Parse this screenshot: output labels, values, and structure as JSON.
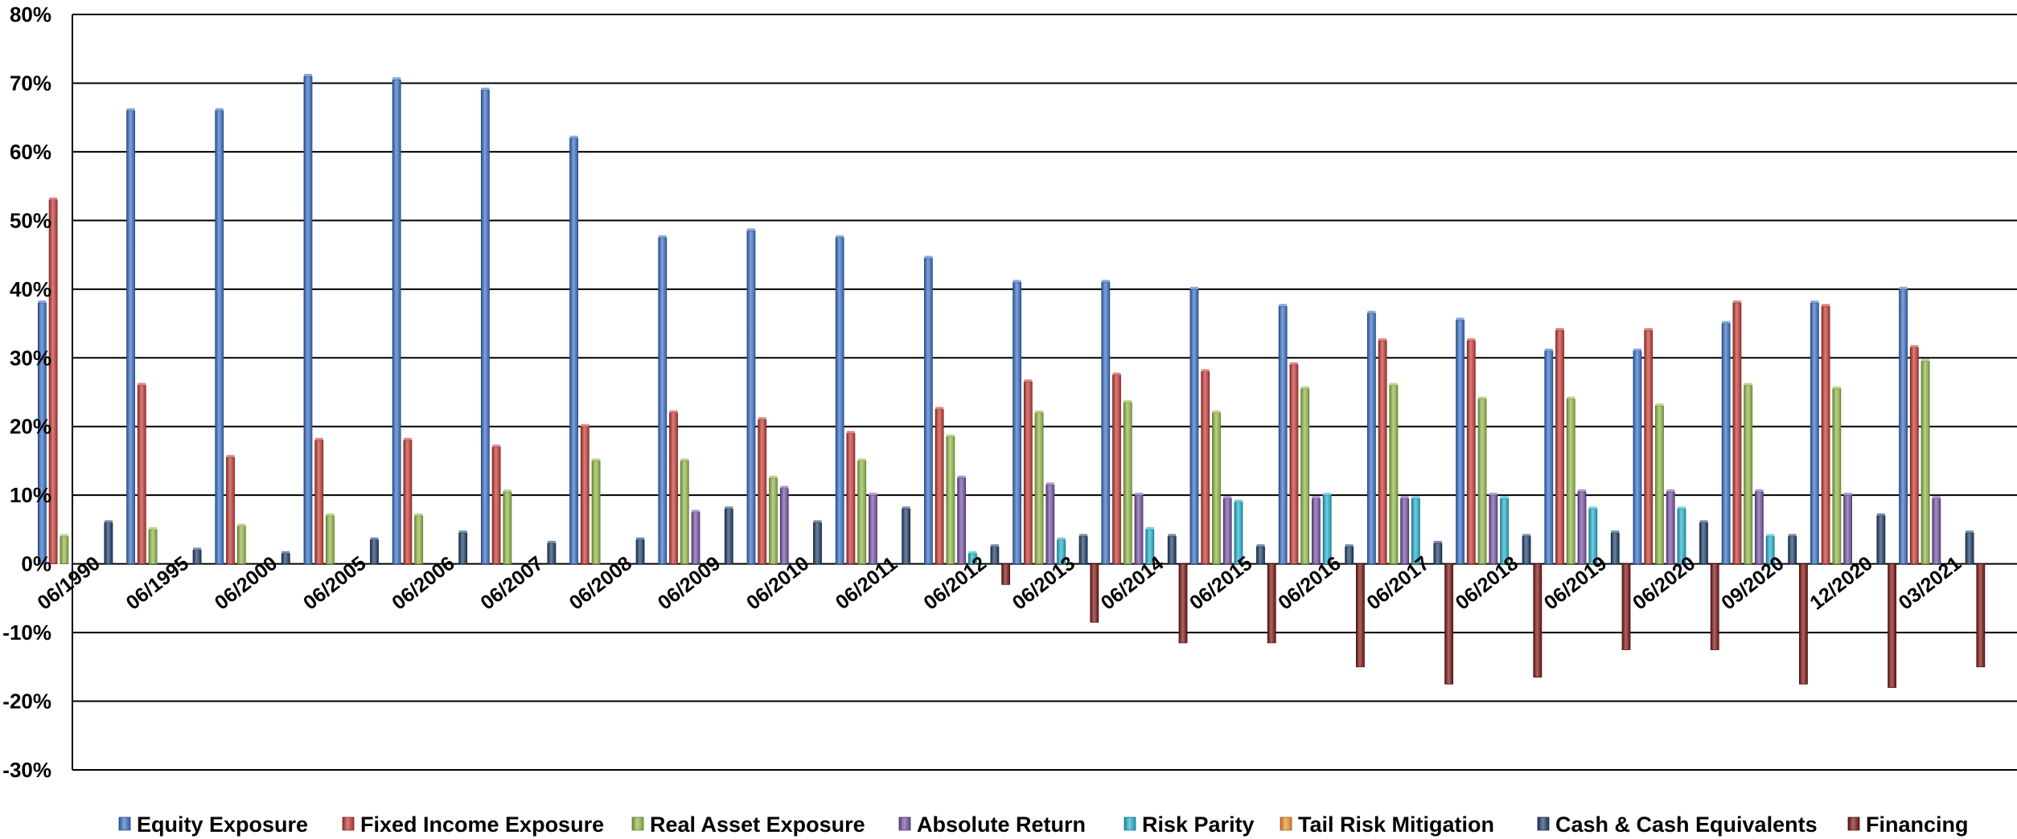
{
  "chart_data": {
    "type": "bar",
    "ylim": [
      -30,
      80
    ],
    "y_ticks": [
      "80%",
      "70%",
      "60%",
      "50%",
      "40%",
      "30%",
      "20%",
      "10%",
      "0%",
      "-10%",
      "-20%",
      "-30%"
    ],
    "grid": true,
    "legend_position": "bottom",
    "categories": [
      "06/1990",
      "06/1995",
      "06/2000",
      "06/2005",
      "06/2006",
      "06/2007",
      "06/2008",
      "06/2009",
      "06/2010",
      "06/2011",
      "06/2012",
      "06/2013",
      "06/2014",
      "06/2015",
      "06/2016",
      "06/2017",
      "06/2018",
      "06/2019",
      "06/2020",
      "09/2020",
      "12/2020",
      "03/2021"
    ],
    "series": [
      {
        "name": "Equity Exposure",
        "color": "#3A70C4",
        "values": [
          38,
          66,
          66,
          71,
          70.5,
          69,
          62,
          47.5,
          48.5,
          47.5,
          44.5,
          41,
          41,
          40,
          37.5,
          36.5,
          35.5,
          31,
          31,
          35,
          38,
          40
        ]
      },
      {
        "name": "Fixed Income Exposure",
        "color": "#C33B36",
        "values": [
          53,
          26,
          15.5,
          18,
          18,
          17,
          20,
          22,
          21,
          19,
          22.5,
          26.5,
          27.5,
          28,
          29,
          32.5,
          32.5,
          34,
          34,
          38,
          37.5,
          31.5
        ]
      },
      {
        "name": "Real Asset Exposure",
        "color": "#92B94A",
        "values": [
          4,
          5,
          5.5,
          7,
          7,
          10.5,
          15,
          15,
          12.5,
          15,
          18.5,
          22,
          23.5,
          22,
          25.5,
          26,
          24,
          24,
          23,
          26,
          25.5,
          29.5
        ]
      },
      {
        "name": "Absolute Return",
        "color": "#7752A2",
        "values": [
          0,
          0,
          0,
          0,
          0,
          0,
          0,
          7.5,
          11,
          10,
          12.5,
          11.5,
          10,
          9.5,
          9.5,
          9.5,
          10,
          10.5,
          10.5,
          10.5,
          10,
          9.5
        ]
      },
      {
        "name": "Risk Parity",
        "color": "#27B1CC",
        "values": [
          0,
          0,
          0,
          0,
          0,
          0,
          0,
          0,
          0,
          0,
          1.5,
          3.5,
          5,
          9,
          10,
          9.5,
          9.5,
          8,
          8,
          4,
          0,
          0
        ]
      },
      {
        "name": "Tail Risk Mitigation",
        "color": "#F0902C",
        "values": [
          0,
          0,
          0,
          0,
          0,
          0,
          0,
          0,
          0,
          0,
          0,
          0,
          0,
          0,
          0,
          0,
          0,
          0,
          0,
          0,
          0,
          0
        ]
      },
      {
        "name": "Cash & Cash Equivalents",
        "color": "#1F3E68",
        "values": [
          6,
          2,
          1.5,
          3.5,
          4.5,
          3,
          3.5,
          8,
          6,
          8,
          2.5,
          4,
          4,
          2.5,
          2.5,
          3,
          4,
          4.5,
          6,
          4,
          7,
          4.5
        ]
      },
      {
        "name": "Financing",
        "color": "#7A1614",
        "values": [
          0,
          0,
          0,
          0,
          0,
          0,
          0,
          0,
          0,
          0,
          -3,
          -8.5,
          -11.5,
          -11.5,
          -15,
          -17.5,
          -16.5,
          -12.5,
          -12.5,
          -17.5,
          -18,
          -15
        ]
      }
    ]
  }
}
